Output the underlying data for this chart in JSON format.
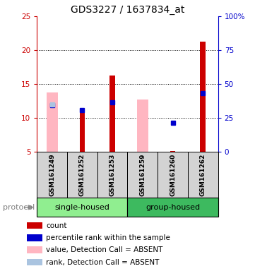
{
  "title": "GDS3227 / 1637834_at",
  "samples": [
    "GSM161249",
    "GSM161252",
    "GSM161253",
    "GSM161259",
    "GSM161260",
    "GSM161262"
  ],
  "ylim_left": [
    5,
    25
  ],
  "ylim_right": [
    0,
    100
  ],
  "yticks_left": [
    5,
    10,
    15,
    20,
    25
  ],
  "yticks_right": [
    0,
    25,
    50,
    75,
    100
  ],
  "red_bars": [
    null,
    11.1,
    16.3,
    null,
    5.1,
    21.3
  ],
  "red_bar_bottom": 5,
  "pink_bars": [
    13.8,
    null,
    null,
    12.7,
    null,
    null
  ],
  "blue_squares": [
    11.9,
    11.2,
    12.3,
    null,
    9.3,
    13.7
  ],
  "light_blue_squares": [
    12.0,
    null,
    null,
    null,
    null,
    null
  ],
  "red_color": "#cc0000",
  "pink_color": "#ffb6c1",
  "blue_color": "#0000cc",
  "lblue_color": "#aac4e0",
  "axis_color_left": "#cc0000",
  "axis_color_right": "#0000cc",
  "sample_box_color": "#d3d3d3",
  "group1_color": "#90ee90",
  "group2_color": "#3dba5f",
  "bg_color": "#ffffff",
  "legend_items": [
    {
      "color": "#cc0000",
      "label": "count"
    },
    {
      "color": "#0000cc",
      "label": "percentile rank within the sample"
    },
    {
      "color": "#ffb6c1",
      "label": "value, Detection Call = ABSENT"
    },
    {
      "color": "#aac4e0",
      "label": "rank, Detection Call = ABSENT"
    }
  ],
  "protocol_label": "protocol",
  "single_housed_label": "single-housed",
  "group_housed_label": "group-housed",
  "title_fontsize": 10,
  "tick_fontsize": 7.5,
  "label_fontsize": 8,
  "legend_fontsize": 7.5,
  "sample_fontsize": 6.5
}
